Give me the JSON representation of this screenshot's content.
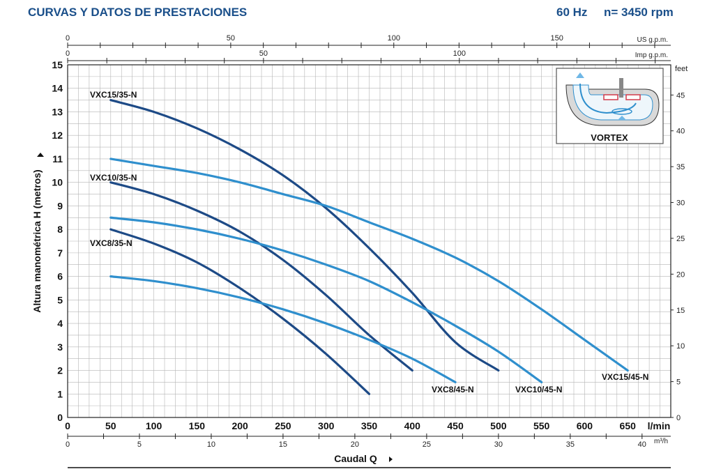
{
  "header": {
    "title": "CURVAS Y DATOS DE PRESTACIONES",
    "frequency": "60 Hz",
    "speed": "n= 3450 rpm"
  },
  "colors": {
    "dark_curve": "#1d4a86",
    "light_curve": "#2f8fcd",
    "grid": "#b5b5b5",
    "title": "#1a4f8a"
  },
  "chart_data": {
    "type": "line",
    "xlabel": "Caudal Q",
    "ylabel": "Altura manométrica H (metros)",
    "x_unit": "l/min",
    "xlim": [
      0,
      700
    ],
    "ylim": [
      0,
      15
    ],
    "x_ticks": [
      0,
      50,
      100,
      150,
      200,
      250,
      300,
      350,
      400,
      450,
      500,
      550,
      600,
      650
    ],
    "y_ticks": [
      0,
      1,
      2,
      3,
      4,
      5,
      6,
      7,
      8,
      9,
      10,
      11,
      12,
      13,
      14,
      15
    ],
    "grid": true,
    "secondary_axes": {
      "feet": {
        "label": "feet",
        "ticks": [
          0,
          5,
          10,
          15,
          20,
          25,
          30,
          35,
          40,
          45
        ]
      },
      "m3h": {
        "label": "m³/h",
        "ticks": [
          0,
          5,
          10,
          15,
          20,
          25,
          30,
          35,
          40
        ]
      },
      "us_gpm": {
        "label": "US g.p.m.",
        "ticks": [
          0,
          50,
          100,
          150
        ]
      },
      "imp_gpm": {
        "label": "Imp g.p.m.",
        "ticks": [
          0,
          50,
          100
        ]
      }
    },
    "series": [
      {
        "name": "VXC15/35-N",
        "tone": "dark",
        "x": [
          50,
          100,
          150,
          200,
          250,
          300,
          350,
          400,
          450,
          500
        ],
        "y": [
          13.5,
          13.0,
          12.3,
          11.4,
          10.3,
          8.9,
          7.2,
          5.3,
          3.2,
          2.0
        ]
      },
      {
        "name": "VXC10/35-N",
        "tone": "dark",
        "x": [
          50,
          100,
          150,
          200,
          250,
          300,
          350,
          400
        ],
        "y": [
          10.0,
          9.5,
          8.8,
          7.9,
          6.7,
          5.2,
          3.5,
          2.0
        ]
      },
      {
        "name": "VXC8/35-N",
        "tone": "dark",
        "x": [
          50,
          100,
          150,
          200,
          250,
          300,
          350
        ],
        "y": [
          8.0,
          7.4,
          6.6,
          5.5,
          4.2,
          2.7,
          1.0
        ]
      },
      {
        "name": "VXC15/45-N",
        "tone": "light",
        "x": [
          50,
          100,
          150,
          200,
          250,
          300,
          350,
          400,
          450,
          500,
          550,
          600,
          650
        ],
        "y": [
          11.0,
          10.7,
          10.4,
          10.0,
          9.5,
          9.0,
          8.3,
          7.6,
          6.8,
          5.8,
          4.6,
          3.3,
          2.0
        ]
      },
      {
        "name": "VXC10/45-N",
        "tone": "light",
        "x": [
          50,
          100,
          150,
          200,
          250,
          300,
          350,
          400,
          450,
          500,
          550
        ],
        "y": [
          8.5,
          8.3,
          8.0,
          7.6,
          7.1,
          6.5,
          5.8,
          4.9,
          3.9,
          2.8,
          1.5
        ]
      },
      {
        "name": "VXC8/45-N",
        "tone": "light",
        "x": [
          50,
          100,
          150,
          200,
          250,
          300,
          350,
          400,
          450
        ],
        "y": [
          6.0,
          5.8,
          5.5,
          5.1,
          4.6,
          4.0,
          3.3,
          2.5,
          1.5
        ]
      }
    ]
  },
  "inset": {
    "label": "VORTEX"
  }
}
